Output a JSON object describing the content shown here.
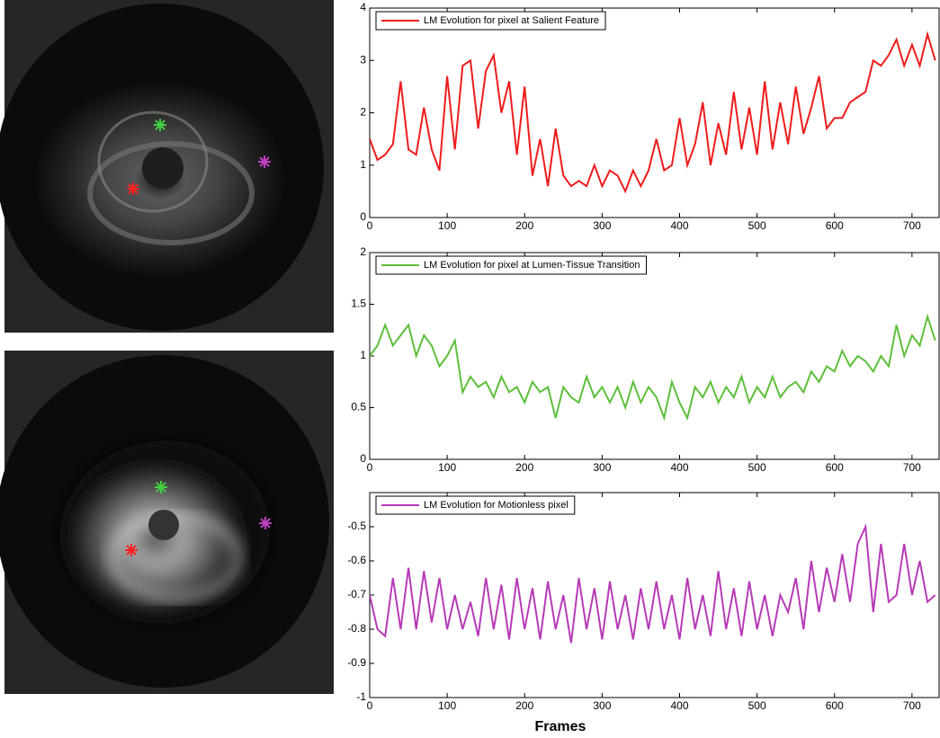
{
  "chart_data": [
    {
      "type": "line",
      "x": [
        0,
        10,
        20,
        30,
        40,
        50,
        60,
        70,
        80,
        90,
        100,
        110,
        120,
        130,
        140,
        150,
        160,
        170,
        180,
        190,
        200,
        210,
        220,
        230,
        240,
        250,
        260,
        270,
        280,
        290,
        300,
        310,
        320,
        330,
        340,
        350,
        360,
        370,
        380,
        390,
        400,
        410,
        420,
        430,
        440,
        450,
        460,
        470,
        480,
        490,
        500,
        510,
        520,
        530,
        540,
        550,
        560,
        570,
        580,
        590,
        600,
        610,
        620,
        630,
        640,
        650,
        660,
        670,
        680,
        690,
        700,
        710,
        720,
        730
      ],
      "series": [
        {
          "name": "LM Evolution for pixel at Salient Feature",
          "color": "#ee1c1c",
          "values": [
            1.5,
            1.1,
            1.2,
            1.4,
            2.6,
            1.3,
            1.2,
            2.1,
            1.3,
            0.9,
            2.7,
            1.3,
            2.9,
            3.0,
            1.7,
            2.8,
            3.1,
            2.0,
            2.6,
            1.2,
            2.5,
            0.8,
            1.5,
            0.6,
            1.7,
            0.8,
            0.6,
            0.7,
            0.6,
            1.0,
            0.6,
            0.9,
            0.8,
            0.5,
            0.9,
            0.6,
            0.9,
            1.5,
            0.9,
            1.0,
            1.9,
            1.0,
            1.4,
            2.2,
            1.0,
            1.8,
            1.2,
            2.4,
            1.3,
            2.1,
            1.2,
            2.6,
            1.3,
            2.2,
            1.4,
            2.5,
            1.6,
            2.1,
            2.7,
            1.7,
            1.9,
            1.9,
            2.2,
            2.3,
            2.4,
            3.0,
            2.9,
            3.1,
            3.4,
            2.9,
            3.3,
            2.9,
            3.5,
            3.0
          ]
        }
      ],
      "xlim": [
        0,
        735
      ],
      "xticks": [
        0,
        100,
        200,
        300,
        400,
        500,
        600,
        700
      ],
      "ylim": [
        0,
        4
      ],
      "yticks": [
        0,
        1,
        2,
        3,
        4
      ]
    },
    {
      "type": "line",
      "x": [
        0,
        10,
        20,
        30,
        40,
        50,
        60,
        70,
        80,
        90,
        100,
        110,
        120,
        130,
        140,
        150,
        160,
        170,
        180,
        190,
        200,
        210,
        220,
        230,
        240,
        250,
        260,
        270,
        280,
        290,
        300,
        310,
        320,
        330,
        340,
        350,
        360,
        370,
        380,
        390,
        400,
        410,
        420,
        430,
        440,
        450,
        460,
        470,
        480,
        490,
        500,
        510,
        520,
        530,
        540,
        550,
        560,
        570,
        580,
        590,
        600,
        610,
        620,
        630,
        640,
        650,
        660,
        670,
        680,
        690,
        700,
        710,
        720,
        730
      ],
      "series": [
        {
          "name": "LM Evolution for pixel at Lumen-Tissue Transition",
          "color": "#5cbf3a",
          "values": [
            1.0,
            1.1,
            1.3,
            1.1,
            1.2,
            1.3,
            1.0,
            1.2,
            1.1,
            0.9,
            1.0,
            1.15,
            0.65,
            0.8,
            0.7,
            0.75,
            0.6,
            0.8,
            0.65,
            0.7,
            0.55,
            0.75,
            0.65,
            0.7,
            0.4,
            0.7,
            0.6,
            0.55,
            0.8,
            0.6,
            0.7,
            0.55,
            0.7,
            0.5,
            0.75,
            0.55,
            0.7,
            0.6,
            0.4,
            0.75,
            0.55,
            0.4,
            0.7,
            0.6,
            0.75,
            0.55,
            0.7,
            0.6,
            0.8,
            0.55,
            0.7,
            0.6,
            0.8,
            0.6,
            0.7,
            0.75,
            0.65,
            0.85,
            0.75,
            0.9,
            0.85,
            1.05,
            0.9,
            1.0,
            0.95,
            0.85,
            1.0,
            0.9,
            1.3,
            1.0,
            1.2,
            1.1,
            1.38,
            1.15
          ]
        }
      ],
      "xlim": [
        0,
        735
      ],
      "xticks": [
        0,
        100,
        200,
        300,
        400,
        500,
        600,
        700
      ],
      "ylim": [
        0,
        2
      ],
      "yticks": [
        0,
        0.5,
        1,
        1.5,
        2
      ]
    },
    {
      "type": "line",
      "x": [
        0,
        10,
        20,
        30,
        40,
        50,
        60,
        70,
        80,
        90,
        100,
        110,
        120,
        130,
        140,
        150,
        160,
        170,
        180,
        190,
        200,
        210,
        220,
        230,
        240,
        250,
        260,
        270,
        280,
        290,
        300,
        310,
        320,
        330,
        340,
        350,
        360,
        370,
        380,
        390,
        400,
        410,
        420,
        430,
        440,
        450,
        460,
        470,
        480,
        490,
        500,
        510,
        520,
        530,
        540,
        550,
        560,
        570,
        580,
        590,
        600,
        610,
        620,
        630,
        640,
        650,
        660,
        670,
        680,
        690,
        700,
        710,
        720,
        730
      ],
      "series": [
        {
          "name": "LM Evolution for Motionless pixel",
          "color": "#b63ab6",
          "values": [
            -0.7,
            -0.8,
            -0.82,
            -0.65,
            -0.8,
            -0.62,
            -0.8,
            -0.63,
            -0.78,
            -0.65,
            -0.8,
            -0.7,
            -0.8,
            -0.72,
            -0.82,
            -0.65,
            -0.8,
            -0.67,
            -0.83,
            -0.65,
            -0.8,
            -0.68,
            -0.83,
            -0.66,
            -0.8,
            -0.7,
            -0.84,
            -0.65,
            -0.8,
            -0.68,
            -0.83,
            -0.66,
            -0.8,
            -0.7,
            -0.83,
            -0.68,
            -0.8,
            -0.66,
            -0.8,
            -0.7,
            -0.83,
            -0.65,
            -0.8,
            -0.7,
            -0.82,
            -0.63,
            -0.8,
            -0.68,
            -0.82,
            -0.66,
            -0.8,
            -0.7,
            -0.82,
            -0.7,
            -0.75,
            -0.65,
            -0.8,
            -0.6,
            -0.75,
            -0.62,
            -0.72,
            -0.58,
            -0.72,
            -0.55,
            -0.5,
            -0.75,
            -0.55,
            -0.72,
            -0.7,
            -0.55,
            -0.7,
            -0.6,
            -0.72,
            -0.7
          ]
        }
      ],
      "xlim": [
        0,
        735
      ],
      "xticks": [
        0,
        100,
        200,
        300,
        400,
        500,
        600,
        700
      ],
      "ylim": [
        -1,
        -0.4
      ],
      "yticks": [
        -1,
        -0.9,
        -0.8,
        -0.7,
        -0.6,
        -0.5
      ],
      "xlabel": "Frames"
    }
  ]
}
